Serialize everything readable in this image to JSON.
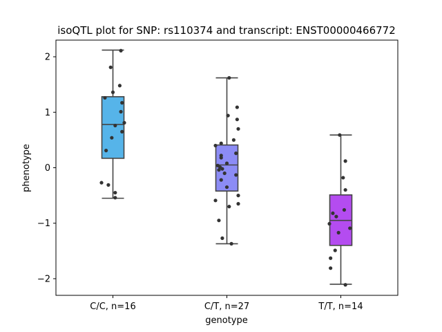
{
  "chart_data": {
    "type": "box",
    "title": "isoQTL plot for SNP: rs110374 and transcript: ENST00000466772",
    "xlabel": "genotype",
    "ylabel": "phenotype",
    "ylim": [
      -2.3,
      2.3
    ],
    "yticks": [
      {
        "value": 2,
        "label": "2"
      },
      {
        "value": 1,
        "label": "1"
      },
      {
        "value": 0,
        "label": "0"
      },
      {
        "value": -1,
        "label": "−1"
      },
      {
        "value": -2,
        "label": "−2"
      }
    ],
    "grid": false,
    "categories": [
      "C/C, n=16",
      "C/T, n=27",
      "T/T, n=14"
    ],
    "colors": [
      "#56b4e9",
      "#8c8cf5",
      "#b44cf0"
    ],
    "point_color": "#333333",
    "boxes": [
      {
        "whislo": -0.55,
        "q1": 0.17,
        "median": 0.78,
        "q3": 1.28,
        "whishi": 2.12
      },
      {
        "whislo": -1.37,
        "q1": -0.42,
        "median": 0.05,
        "q3": 0.41,
        "whishi": 1.62
      },
      {
        "whislo": -2.1,
        "q1": -1.4,
        "median": -0.95,
        "q3": -0.49,
        "whishi": 0.59
      }
    ],
    "points": [
      [
        [
          0.07,
          2.11
        ],
        [
          -0.02,
          1.81
        ],
        [
          0.06,
          1.48
        ],
        [
          0.0,
          1.36
        ],
        [
          -0.07,
          1.26
        ],
        [
          0.08,
          1.17
        ],
        [
          0.07,
          1.01
        ],
        [
          0.1,
          0.81
        ],
        [
          0.02,
          0.76
        ],
        [
          0.08,
          0.65
        ],
        [
          -0.01,
          0.54
        ],
        [
          -0.06,
          0.31
        ],
        [
          -0.1,
          -0.27
        ],
        [
          -0.04,
          -0.31
        ],
        [
          0.02,
          -0.45
        ],
        [
          0.02,
          -0.54
        ]
      ],
      [
        [
          0.02,
          1.62
        ],
        [
          0.09,
          1.09
        ],
        [
          0.01,
          0.94
        ],
        [
          0.09,
          0.87
        ],
        [
          0.1,
          0.7
        ],
        [
          0.06,
          0.5
        ],
        [
          -0.05,
          0.44
        ],
        [
          -0.1,
          0.4
        ],
        [
          0.08,
          0.26
        ],
        [
          -0.05,
          0.22
        ],
        [
          -0.05,
          0.18
        ],
        [
          0.0,
          0.08
        ],
        [
          -0.08,
          0.04
        ],
        [
          -0.06,
          0.01
        ],
        [
          -0.04,
          -0.02
        ],
        [
          -0.07,
          -0.04
        ],
        [
          -0.02,
          -0.1
        ],
        [
          0.08,
          -0.13
        ],
        [
          -0.05,
          -0.22
        ],
        [
          0.0,
          -0.35
        ],
        [
          0.1,
          -0.5
        ],
        [
          -0.1,
          -0.59
        ],
        [
          0.1,
          -0.65
        ],
        [
          0.02,
          -0.7
        ],
        [
          -0.07,
          -0.95
        ],
        [
          -0.04,
          -1.27
        ],
        [
          0.04,
          -1.37
        ]
      ],
      [
        [
          -0.01,
          0.59
        ],
        [
          0.04,
          0.12
        ],
        [
          0.02,
          -0.18
        ],
        [
          0.04,
          -0.4
        ],
        [
          0.03,
          -0.76
        ],
        [
          -0.07,
          -0.82
        ],
        [
          -0.04,
          -0.88
        ],
        [
          -0.1,
          -1.01
        ],
        [
          0.08,
          -1.09
        ],
        [
          -0.02,
          -1.17
        ],
        [
          -0.05,
          -1.49
        ],
        [
          -0.09,
          -1.63
        ],
        [
          -0.09,
          -1.81
        ],
        [
          0.04,
          -2.11
        ]
      ]
    ]
  }
}
